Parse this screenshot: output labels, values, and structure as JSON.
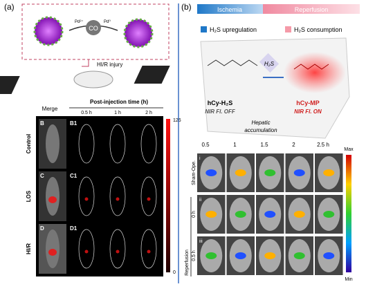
{
  "panel_a": {
    "label": "(a)",
    "scheme": {
      "pd_left": "Pd²⁺",
      "co": "CO",
      "pd_right": "Pd⁰",
      "injury": "HI/R injury"
    },
    "imaging": {
      "merge": "Merge",
      "time_title": "Post-injection time (h)",
      "times": [
        "0.5 h",
        "1 h",
        "2 h"
      ],
      "rows": [
        {
          "group": "Control",
          "merge_id": "B",
          "series_id": "B1"
        },
        {
          "group": "LOS",
          "merge_id": "C",
          "series_id": "C1"
        },
        {
          "group": "HI/R",
          "merge_id": "D",
          "series_id": "D1"
        }
      ],
      "scale_max": 126,
      "scale_min": 0
    }
  },
  "panel_b": {
    "label": "(b)",
    "phases": [
      "Ischemia",
      "Reperfusion"
    ],
    "legend": [
      "H₂S upregulation",
      "H₂S consumption"
    ],
    "reagent": "H₂S",
    "probe": {
      "name": "hCy-H₂S",
      "state": "NIR Fl. OFF"
    },
    "product": {
      "name": "hCy-MP",
      "state": "NIR Fl. ON"
    },
    "accumulation": [
      "Hepatic",
      "accumulation"
    ],
    "imaging": {
      "times": [
        "0.5",
        "1",
        "1.5",
        "2",
        "2.5 h"
      ],
      "rows": [
        {
          "id": "i",
          "label": "Sham-Ope."
        },
        {
          "id": "ii",
          "label": "0 h"
        },
        {
          "id": "iii",
          "label": "0.5 h"
        }
      ],
      "group_label": "Reperfusion",
      "scale": [
        "Max",
        "Min"
      ]
    }
  }
}
